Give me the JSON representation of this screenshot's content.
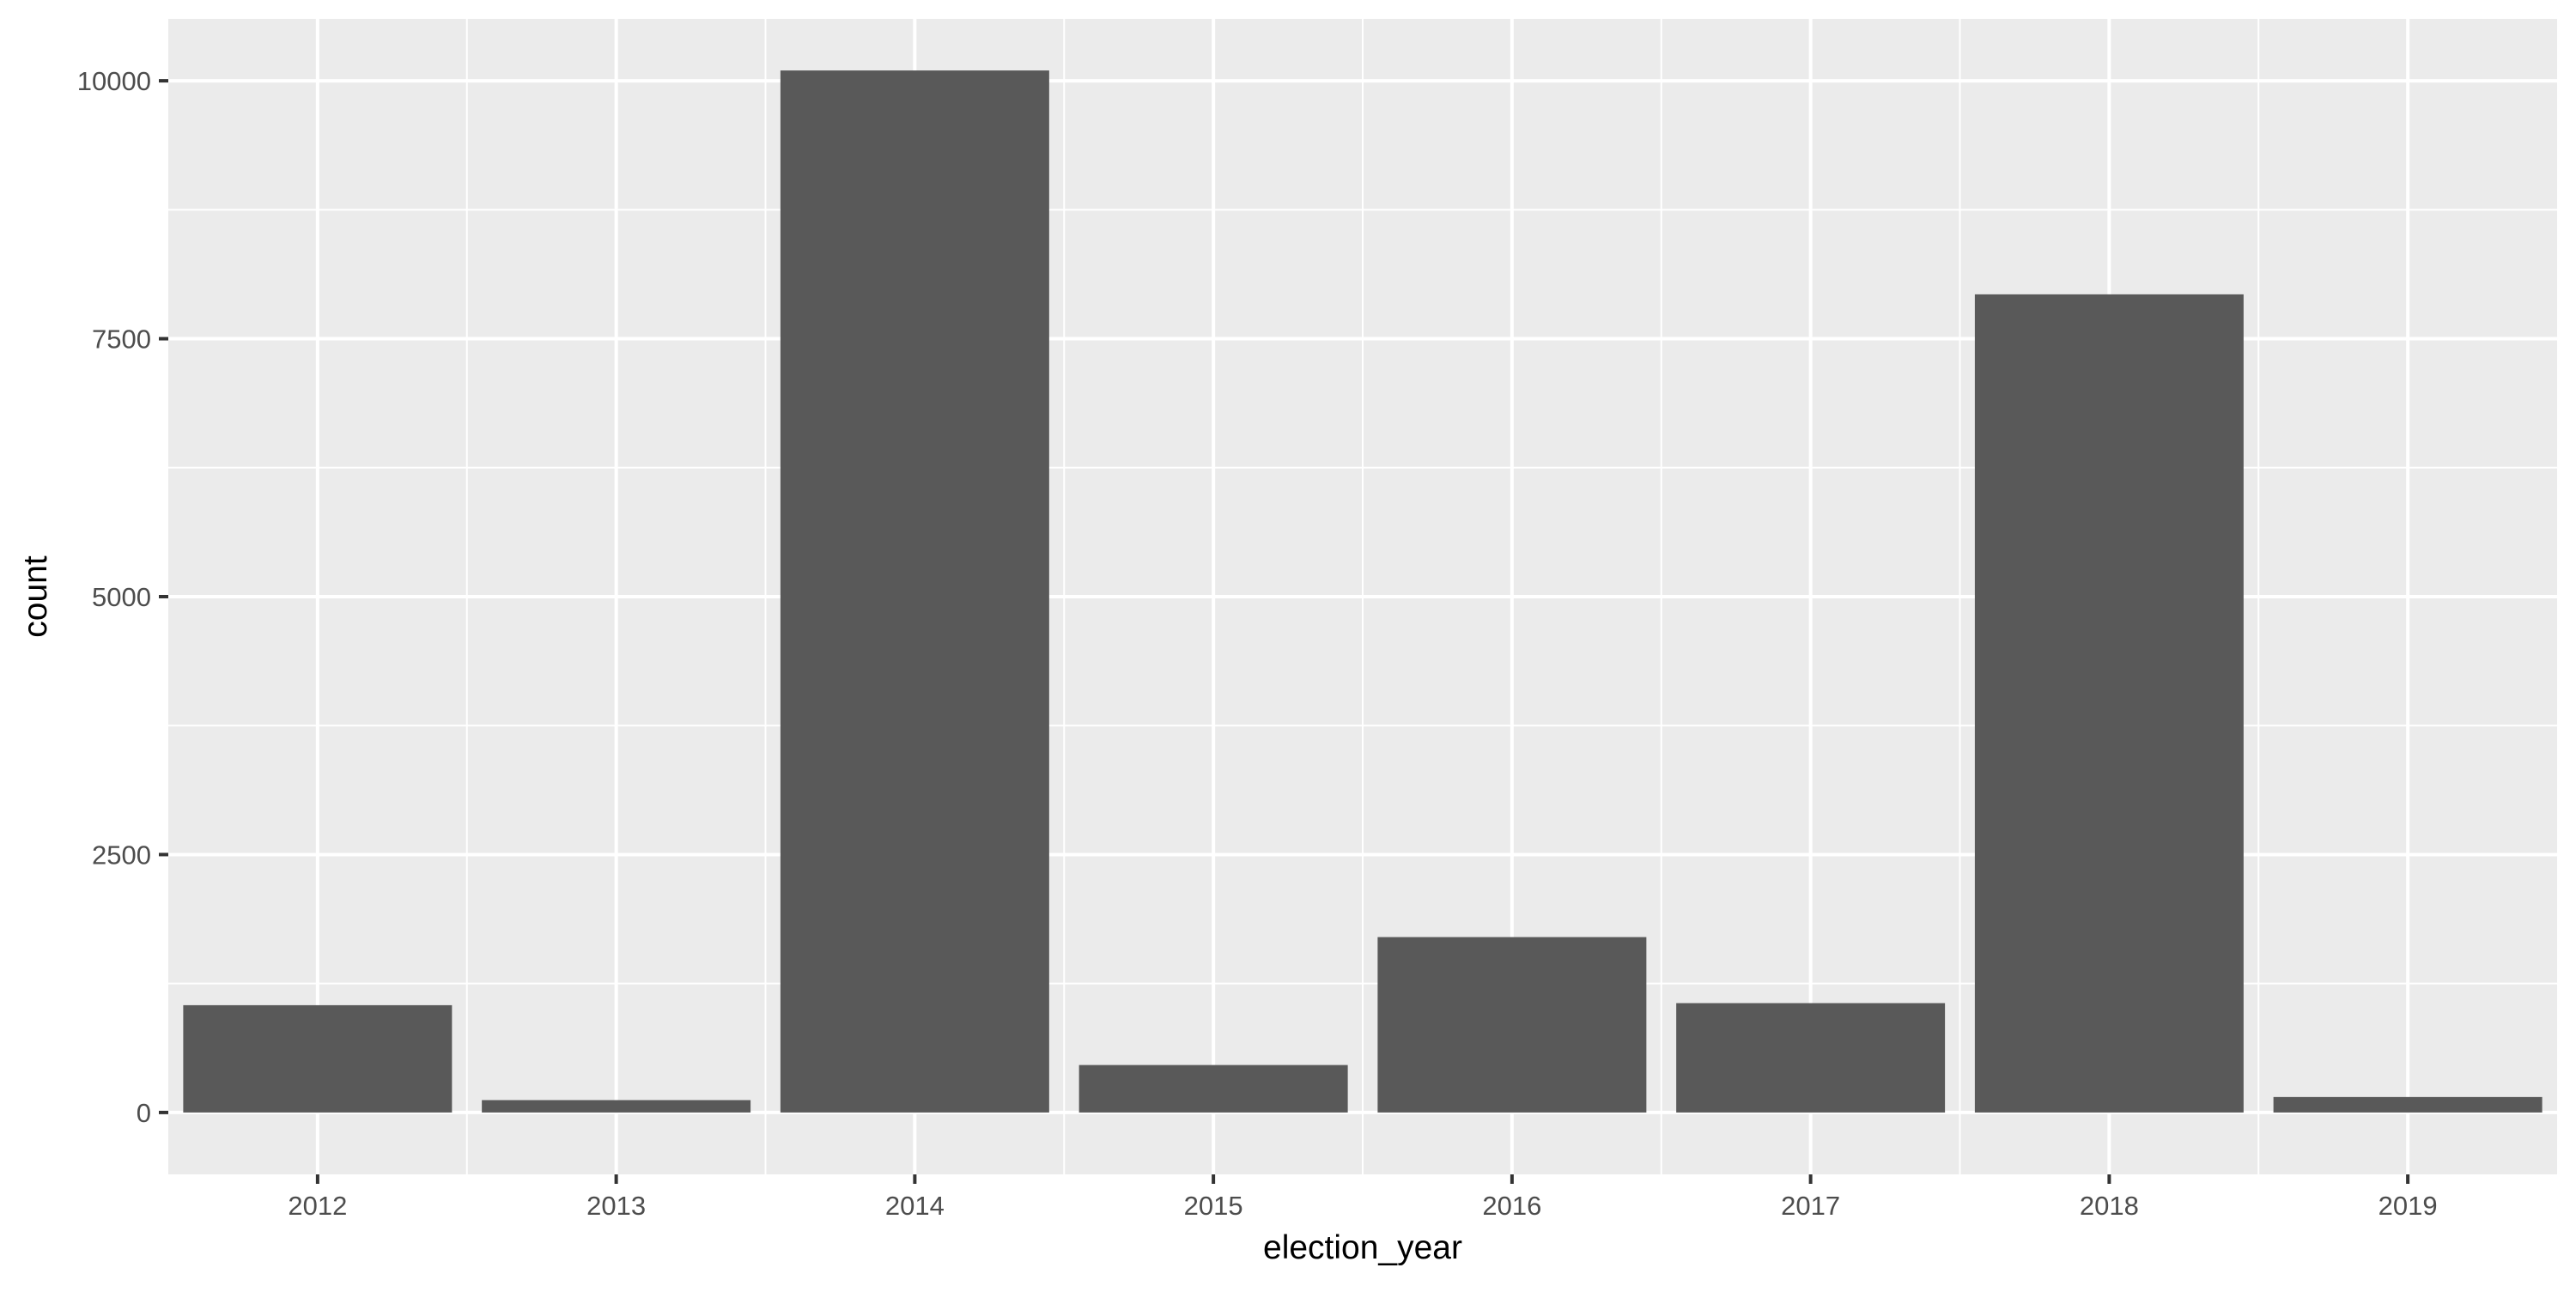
{
  "chart_data": {
    "type": "bar",
    "categories": [
      "2012",
      "2013",
      "2014",
      "2015",
      "2016",
      "2017",
      "2018",
      "2019"
    ],
    "values": [
      1040,
      120,
      10100,
      460,
      1700,
      1060,
      7930,
      150
    ],
    "title": "",
    "xlabel": "election_year",
    "ylabel": "count",
    "ylim": [
      -600,
      10600
    ],
    "yticks": [
      0,
      2500,
      5000,
      7500,
      10000
    ],
    "ytick_labels": [
      "0",
      "2500",
      "5000",
      "7500",
      "10000"
    ],
    "grid": true,
    "colors": {
      "bar": "#595959",
      "panel": "#ebebeb",
      "grid": "#ffffff",
      "text": "#4d4d4d"
    }
  }
}
